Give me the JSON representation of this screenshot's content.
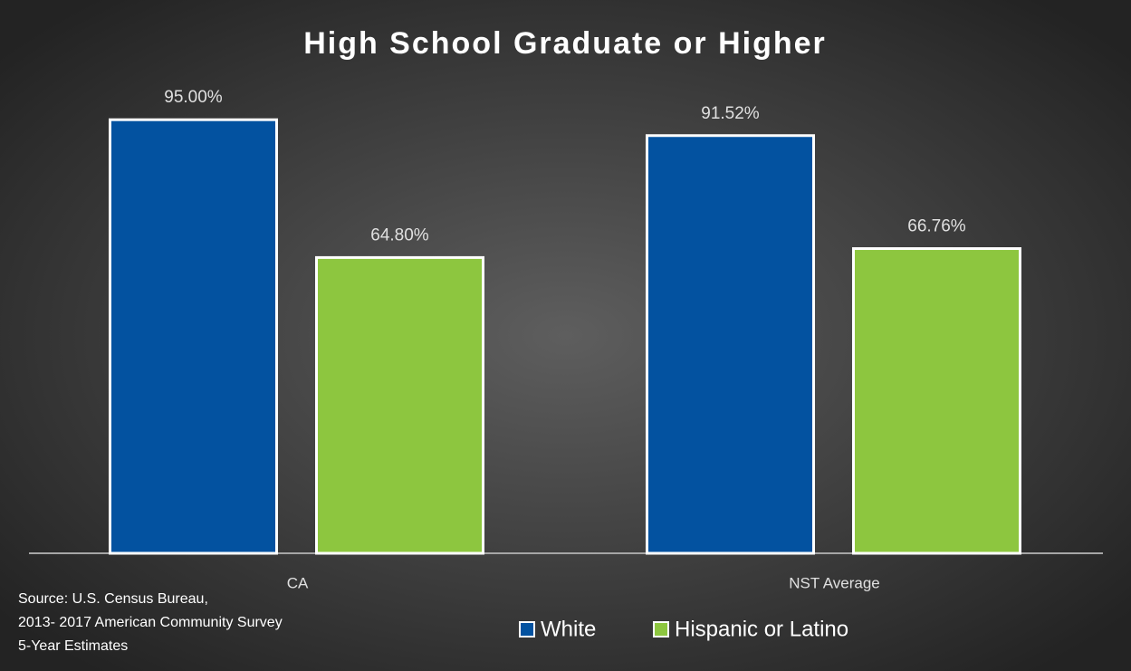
{
  "chart_data": {
    "type": "bar",
    "title": "High School Graduate or Higher",
    "categories": [
      "CA",
      "NST Average"
    ],
    "series": [
      {
        "name": "White",
        "color": "#0352a0",
        "values": [
          95.0,
          91.52
        ],
        "value_labels": [
          "95.00%",
          "91.52%"
        ]
      },
      {
        "name": "Hispanic or Latino",
        "color": "#8dc63f",
        "values": [
          64.8,
          66.76
        ],
        "value_labels": [
          "64.80%",
          "66.76%"
        ]
      }
    ],
    "ylim": [
      0,
      100
    ],
    "source": [
      "Source: U.S. Census Bureau,",
      "2013- 2017 American Community Survey",
      "5-Year Estimates"
    ]
  }
}
